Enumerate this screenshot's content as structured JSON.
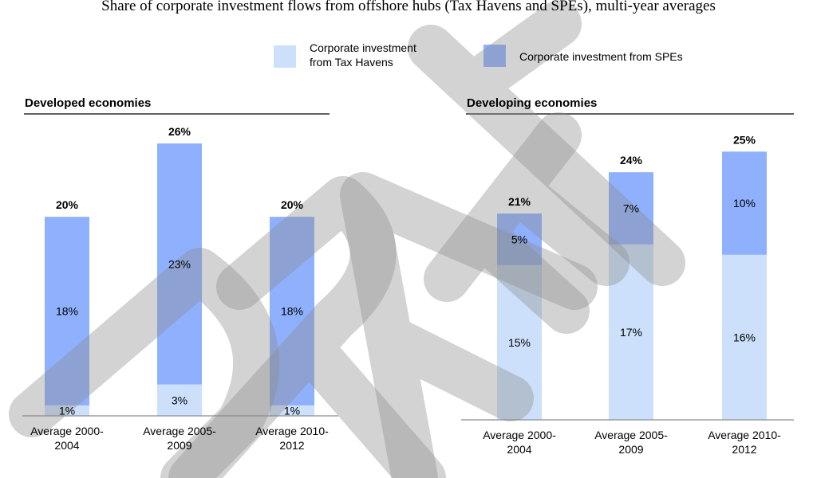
{
  "chart_data": {
    "title": "Share of corporate investment flows from offshore hubs (Tax Havens and SPEs), multi-year averages",
    "legend": {
      "position": "top-center",
      "items": [
        {
          "key": "tax_havens",
          "label_lines": [
            "Corporate investment",
            "from Tax Havens"
          ],
          "color": "#cce0fb"
        },
        {
          "key": "spes",
          "label_lines": [
            "Corporate investment from SPEs"
          ],
          "color": "#8eb0fd"
        }
      ]
    },
    "watermark": "DRAFT",
    "panels": [
      {
        "type": "bar",
        "stacked": true,
        "title": "Developed economies",
        "unit": "%",
        "ylim": [
          0,
          27
        ],
        "grid": false,
        "categories": [
          {
            "line1": "Average 2000-",
            "line2": "2004"
          },
          {
            "line1": "Average 2005-",
            "line2": "2009"
          },
          {
            "line1": "Average 2010-",
            "line2": "2012"
          }
        ],
        "series": [
          {
            "key": "tax_havens",
            "values": [
              1,
              3,
              1
            ],
            "labels": [
              "1%",
              "3%",
              "1%"
            ]
          },
          {
            "key": "spes",
            "values": [
              18,
              23,
              18
            ],
            "labels": [
              "18%",
              "23%",
              "18%"
            ]
          }
        ],
        "totals": [
          20,
          26,
          20
        ],
        "total_labels": [
          "20%",
          "26%",
          "20%"
        ]
      },
      {
        "type": "bar",
        "stacked": true,
        "title": "Developing economies",
        "unit": "%",
        "ylim": [
          0,
          27
        ],
        "grid": false,
        "categories": [
          {
            "line1": "Average 2000-",
            "line2": "2004"
          },
          {
            "line1": "Average 2005-",
            "line2": "2009"
          },
          {
            "line1": "Average 2010-",
            "line2": "2012"
          }
        ],
        "series": [
          {
            "key": "tax_havens",
            "values": [
              15,
              17,
              16
            ],
            "labels": [
              "15%",
              "17%",
              "16%"
            ]
          },
          {
            "key": "spes",
            "values": [
              5,
              7,
              10
            ],
            "labels": [
              "5%",
              "7%",
              "10%"
            ]
          }
        ],
        "totals": [
          21,
          24,
          25
        ],
        "total_labels": [
          "21%",
          "24%",
          "25%"
        ]
      }
    ]
  }
}
